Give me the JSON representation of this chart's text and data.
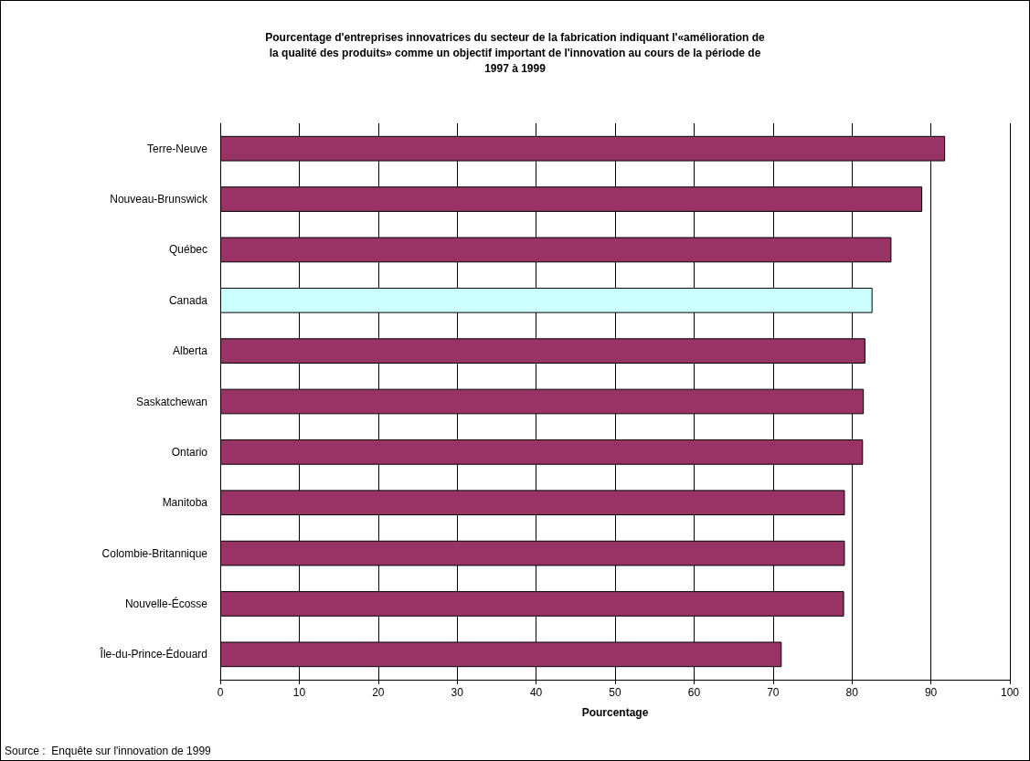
{
  "chart_data": {
    "type": "bar",
    "orientation": "horizontal",
    "title": "Pourcentage d'entreprises innovatrices du secteur de la fabrication indiquant l'«amélioration de\nla qualité des produits» comme un objectif important de l'innovation au cours de la période de\n1997 à 1999",
    "categories": [
      "Terre-Neuve",
      "Nouveau-Brunswick",
      "Québec",
      "Canada",
      "Alberta",
      "Saskatchewan",
      "Ontario",
      "Manitoba",
      "Colombie-Britannique",
      "Nouvelle-Écosse",
      "Île-du-Prince-Édouard"
    ],
    "values": [
      91.8,
      88.9,
      85.0,
      82.6,
      81.7,
      81.5,
      81.4,
      79.1,
      79.1,
      79.0,
      71.1
    ],
    "colors": [
      "#993366",
      "#993366",
      "#993366",
      "#ccffff",
      "#993366",
      "#993366",
      "#993366",
      "#993366",
      "#993366",
      "#993366",
      "#993366"
    ],
    "xlabel": "Pourcentage",
    "xlim": [
      0,
      100
    ],
    "xticks": [
      0,
      10,
      20,
      30,
      40,
      50,
      60,
      70,
      80,
      90,
      100
    ],
    "grid": "x",
    "annotations": [
      "Source :  Enquête sur l'innovation de 1999"
    ]
  }
}
